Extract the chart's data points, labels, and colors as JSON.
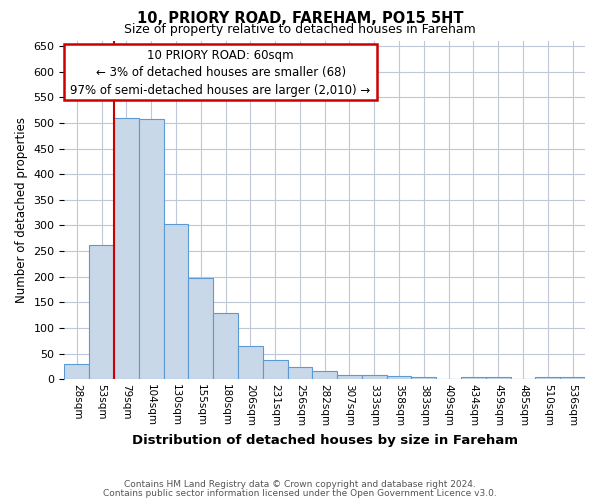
{
  "title1": "10, PRIORY ROAD, FAREHAM, PO15 5HT",
  "title2": "Size of property relative to detached houses in Fareham",
  "xlabel": "Distribution of detached houses by size in Fareham",
  "ylabel": "Number of detached properties",
  "footer1": "Contains HM Land Registry data © Crown copyright and database right 2024.",
  "footer2": "Contains public sector information licensed under the Open Government Licence v3.0.",
  "annotation_line1": "10 PRIORY ROAD: 60sqm",
  "annotation_line2": "← 3% of detached houses are smaller (68)",
  "annotation_line3": "97% of semi-detached houses are larger (2,010) →",
  "bar_labels": [
    "28sqm",
    "53sqm",
    "79sqm",
    "104sqm",
    "130sqm",
    "155sqm",
    "180sqm",
    "206sqm",
    "231sqm",
    "256sqm",
    "282sqm",
    "307sqm",
    "333sqm",
    "358sqm",
    "383sqm",
    "409sqm",
    "434sqm",
    "459sqm",
    "485sqm",
    "510sqm",
    "536sqm"
  ],
  "bar_values": [
    30,
    262,
    510,
    508,
    302,
    197,
    130,
    65,
    37,
    23,
    15,
    9,
    8,
    6,
    4,
    1,
    5,
    5,
    1,
    5,
    5
  ],
  "bar_color": "#c8d8e8",
  "bar_edge_color": "#5b9bd5",
  "red_line_x": 1.5,
  "ylim": [
    0,
    660
  ],
  "yticks": [
    0,
    50,
    100,
    150,
    200,
    250,
    300,
    350,
    400,
    450,
    500,
    550,
    600,
    650
  ],
  "annotation_box_color": "#ffffff",
  "annotation_box_edge": "#cc0000",
  "red_line_color": "#cc0000",
  "background_color": "#ffffff",
  "grid_color": "#c0c8d8"
}
